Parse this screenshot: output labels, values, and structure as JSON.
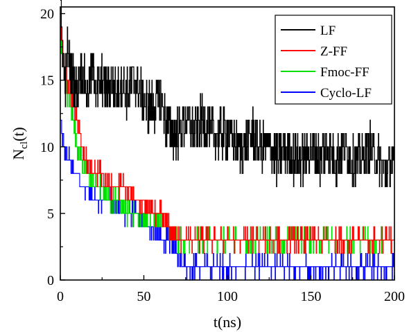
{
  "chart_data": {
    "type": "line",
    "title": "",
    "xlabel": "t(ns)",
    "ylabel_main": "N",
    "ylabel_sub": "cl",
    "ylabel_tail": "(t)",
    "xlim": [
      0,
      200
    ],
    "ylim": [
      0,
      20.5
    ],
    "xticks": [
      0,
      50,
      100,
      150,
      200
    ],
    "yticks": [
      0,
      5,
      10,
      15,
      20
    ],
    "grid": false,
    "legend_position": "top-right",
    "series": [
      {
        "name": "LF",
        "color": "#000000",
        "t": [
          0,
          1,
          2,
          3,
          4,
          6,
          8,
          10,
          12,
          14,
          16,
          18,
          20,
          22,
          25,
          28,
          30,
          33,
          36,
          40,
          44,
          48,
          52,
          56,
          60,
          63,
          66,
          70,
          75,
          80,
          85,
          90,
          95,
          100,
          105,
          110,
          115,
          120,
          125,
          130,
          135,
          140,
          145,
          150,
          155,
          160,
          165,
          170,
          175,
          180,
          185,
          190,
          195,
          198,
          200
        ],
        "value": [
          20,
          18,
          16,
          15,
          17,
          16,
          15,
          14,
          16,
          15,
          14,
          15,
          16,
          14,
          15,
          14,
          15,
          14,
          15,
          14,
          15,
          14,
          13,
          13,
          14,
          12,
          11,
          11,
          12,
          11,
          12,
          11,
          11,
          11,
          10,
          10,
          11,
          10,
          10,
          9,
          10,
          9,
          9,
          10,
          9,
          10,
          9,
          10,
          9,
          9,
          10,
          9,
          8,
          9,
          8
        ],
        "noise": 1.8
      },
      {
        "name": "Z-FF",
        "color": "#ff0000",
        "t": [
          0,
          2,
          4,
          6,
          8,
          10,
          13,
          16,
          20,
          25,
          30,
          35,
          40,
          45,
          50,
          55,
          60,
          65,
          70,
          80,
          90,
          100,
          110,
          120,
          130,
          140,
          150,
          160,
          170,
          180,
          190,
          200
        ],
        "value": [
          19,
          17,
          15,
          14,
          13,
          12,
          10,
          9,
          8,
          8,
          7,
          7,
          7,
          6,
          6,
          5,
          5,
          4,
          3,
          3,
          3,
          3,
          3,
          3,
          3,
          3,
          3,
          3,
          3,
          3,
          3,
          3
        ],
        "noise": 0.6
      },
      {
        "name": "Fmoc-FF",
        "color": "#00e000",
        "t": [
          0,
          2,
          4,
          6,
          8,
          10,
          13,
          16,
          20,
          25,
          30,
          35,
          40,
          45,
          50,
          55,
          60,
          65,
          70,
          80,
          90,
          100,
          110,
          120,
          130,
          140,
          150,
          160,
          170,
          180,
          190,
          200
        ],
        "value": [
          18,
          16,
          14,
          13,
          12,
          10,
          9,
          8,
          7,
          7,
          6,
          6,
          5,
          5,
          5,
          5,
          4,
          4,
          3,
          3,
          3,
          3,
          3,
          3,
          3,
          3,
          3,
          3,
          3,
          3,
          3,
          3
        ],
        "noise": 0.6
      },
      {
        "name": "Cyclo-LF",
        "color": "#0000ff",
        "t": [
          0,
          2,
          4,
          6,
          8,
          10,
          13,
          16,
          20,
          25,
          30,
          35,
          40,
          45,
          50,
          55,
          60,
          65,
          70,
          75,
          80,
          90,
          100,
          110,
          120,
          130,
          140,
          150,
          160,
          170,
          180,
          190,
          200
        ],
        "value": [
          12,
          10,
          9,
          9,
          8,
          8,
          7,
          7,
          6,
          6,
          6,
          5,
          5,
          5,
          4,
          4,
          3,
          3,
          2,
          1,
          1,
          1,
          1,
          1,
          1,
          1,
          1,
          1,
          1,
          1,
          1,
          1,
          1
        ],
        "noise": 0.6
      }
    ]
  }
}
